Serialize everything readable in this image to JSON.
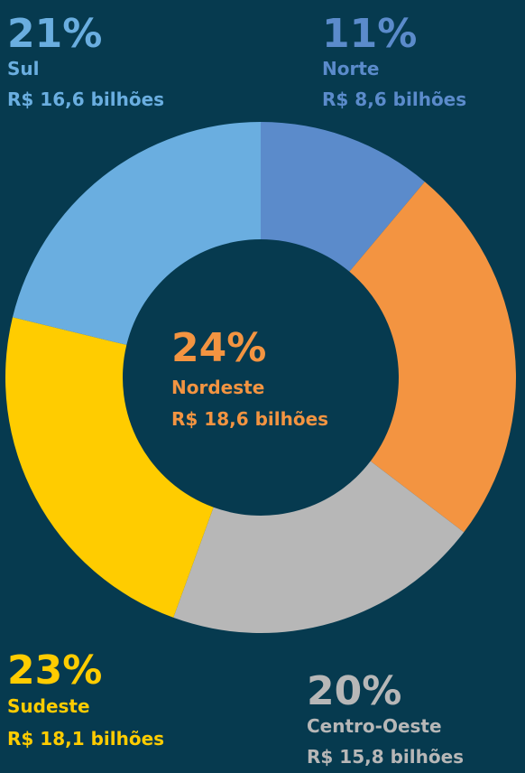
{
  "chart_data": {
    "type": "donut",
    "categories": [
      "Norte",
      "Nordeste",
      "Centro-Oeste",
      "Sudeste",
      "Sul"
    ],
    "values": [
      11,
      24,
      20,
      23,
      21
    ],
    "value_labels": [
      "11%",
      "24%",
      "20%",
      "23%",
      "21%"
    ],
    "amount_labels": [
      "R$ 8,6 bilhões",
      "R$ 18,6 bilhões",
      "R$ 15,8 bilhões",
      "R$ 18,1 bilhões",
      "R$ 16,6 bilhões"
    ],
    "colors": [
      "#5b8bcb",
      "#f39441",
      "#b7b7b7",
      "#ffcc00",
      "#6aaee0"
    ]
  }
}
